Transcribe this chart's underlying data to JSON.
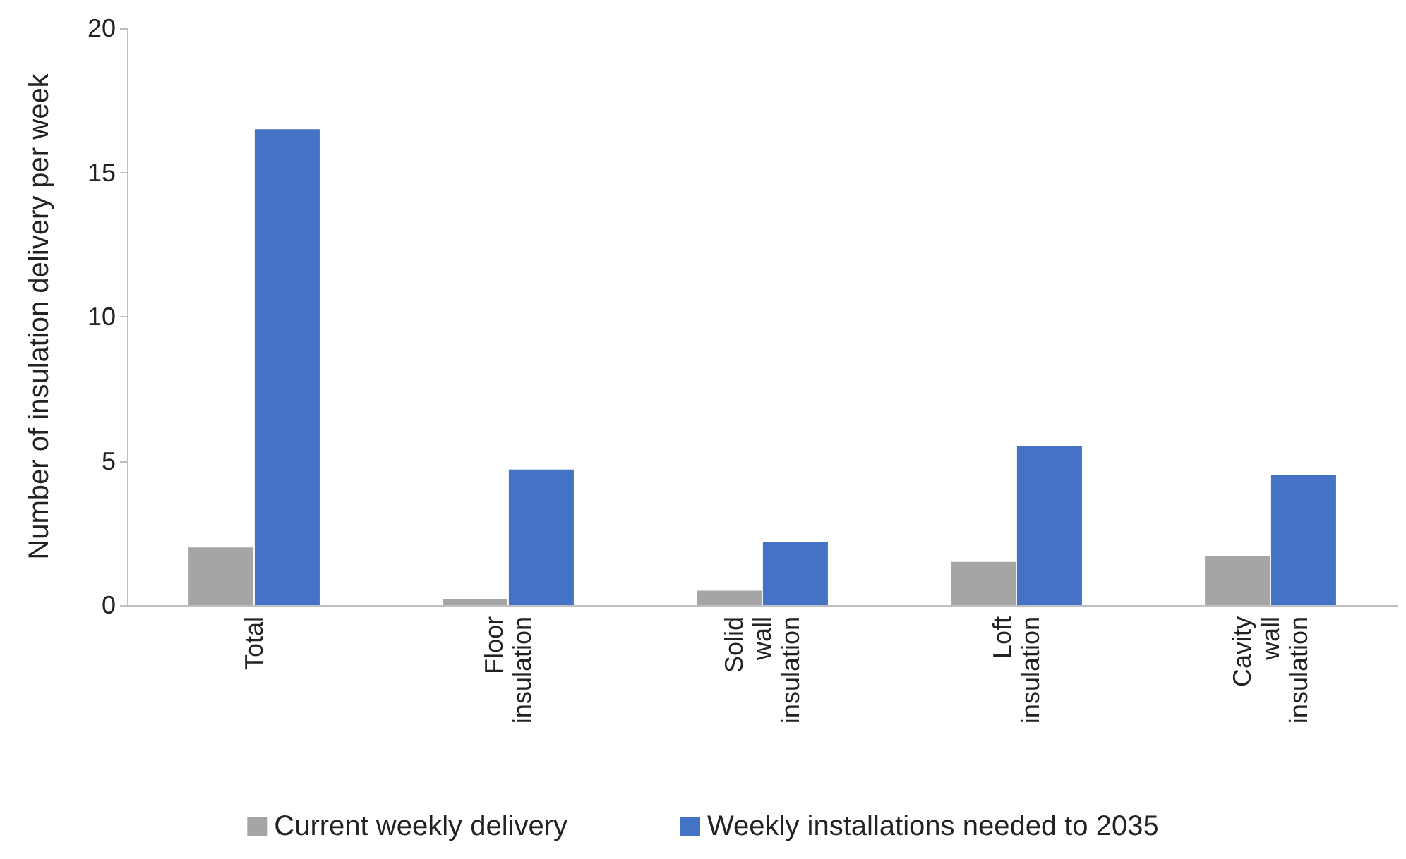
{
  "chart_data": {
    "type": "bar",
    "ylabel": "Number of insulation delivery per week",
    "categories": [
      "Total",
      "Floor insulation",
      "Solid wall insulation",
      "Loft insulation",
      "Cavity wall insulation"
    ],
    "series": [
      {
        "name": "Current weekly delivery",
        "color": "#a5a5a5",
        "values": [
          2.0,
          0.2,
          0.5,
          1.5,
          1.7
        ]
      },
      {
        "name": "Weekly installations needed to 2035",
        "color": "#4472c4",
        "values": [
          16.5,
          4.7,
          2.2,
          5.5,
          4.5
        ]
      }
    ],
    "ylim": [
      0,
      20
    ],
    "yticks": [
      0,
      5,
      10,
      15,
      20
    ],
    "grid": false,
    "legend": "bottom"
  }
}
